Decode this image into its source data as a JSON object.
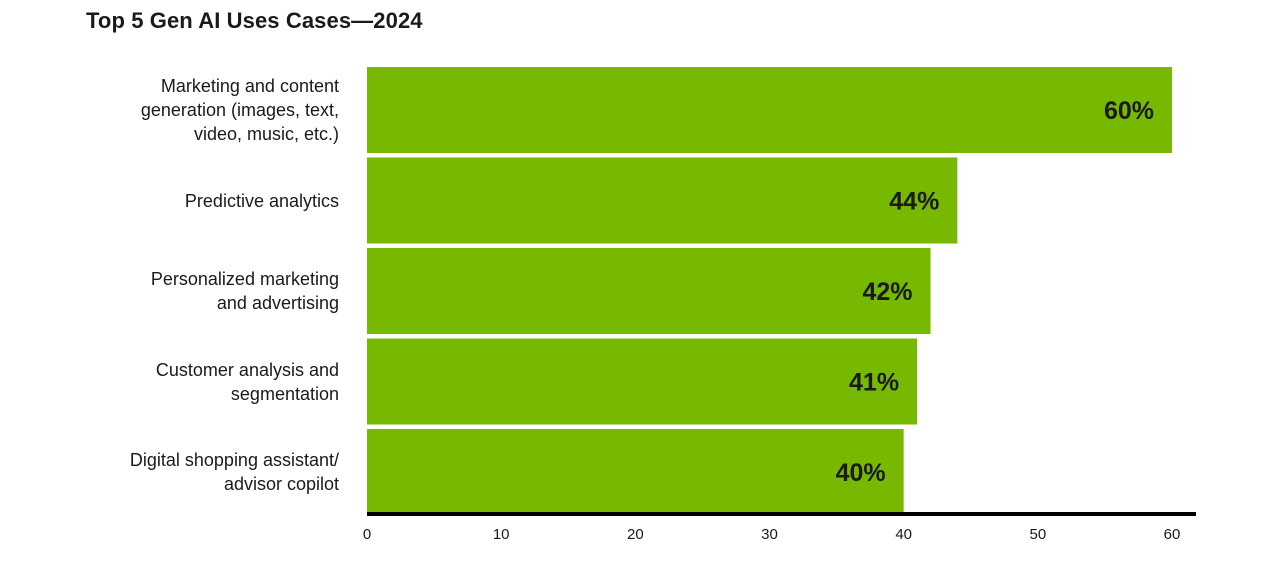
{
  "chart_data": {
    "type": "bar",
    "orientation": "horizontal",
    "title": "Top 5 Gen AI Uses Cases—2024",
    "categories": [
      [
        "Marketing and content",
        "generation (images, text,",
        "video, music, etc.)"
      ],
      [
        "Predictive analytics"
      ],
      [
        "Personalized marketing",
        "and advertising"
      ],
      [
        "Customer analysis and",
        "segmentation"
      ],
      [
        "Digital shopping assistant/",
        "advisor copilot"
      ]
    ],
    "values": [
      60,
      44,
      42,
      41,
      40
    ],
    "data_labels": [
      "60%",
      "44%",
      "42%",
      "41%",
      "40%"
    ],
    "xlim": [
      0,
      60
    ],
    "xticks": [
      "0",
      "10",
      "20",
      "30",
      "40",
      "50",
      "60"
    ],
    "grid": false,
    "legend": "none",
    "colors": {
      "bar": "#76b900",
      "text": "#1a1a1a",
      "axis": "#000000"
    }
  }
}
